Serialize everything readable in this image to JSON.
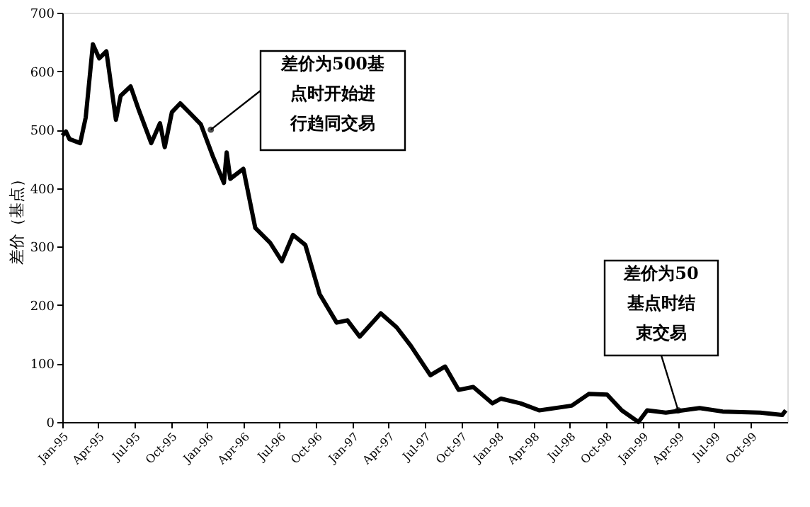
{
  "chart_data": {
    "type": "line",
    "ylabel": "差价（基点）",
    "x": [
      "1995-01-01",
      "1995-01-10",
      "1995-01-19",
      "1995-02-15",
      "1995-03-01",
      "1995-03-19",
      "1995-04-04",
      "1995-04-22",
      "1995-05-16",
      "1995-05-28",
      "1995-06-22",
      "1995-07-13",
      "1995-08-13",
      "1995-09-04",
      "1995-09-16",
      "1995-10-04",
      "1995-10-25",
      "1995-11-16",
      "1995-12-16",
      "1996-01-16",
      "1996-02-12",
      "1996-02-19",
      "1996-02-28",
      "1996-04-01",
      "1996-05-01",
      "1996-06-07",
      "1996-07-07",
      "1996-08-04",
      "1996-09-04",
      "1996-10-10",
      "1996-11-22",
      "1996-12-19",
      "1997-01-19",
      "1997-03-13",
      "1997-04-22",
      "1997-05-28",
      "1997-07-16",
      "1997-08-22",
      "1997-09-25",
      "1997-11-01",
      "1997-12-19",
      "1998-01-10",
      "1998-02-28",
      "1998-04-16",
      "1998-07-07",
      "1998-08-19",
      "1998-10-04",
      "1998-11-10",
      "1998-12-22",
      "1999-01-13",
      "1999-03-01",
      "1999-05-25",
      "1999-07-22",
      "1999-10-25",
      "1999-12-19",
      "1999-12-28"
    ],
    "series": [
      {
        "color": "#000000",
        "values": [
          490,
          497,
          484,
          477,
          521,
          646,
          622,
          634,
          517,
          558,
          574,
          533,
          477,
          511,
          470,
          530,
          545,
          530,
          509,
          453,
          409,
          461,
          416,
          433,
          332,
          307,
          275,
          320,
          303,
          219,
          170,
          174,
          146,
          186,
          162,
          130,
          80,
          95,
          55,
          60,
          32,
          40,
          32,
          20,
          28,
          48,
          47,
          20,
          0,
          20,
          16,
          24,
          18,
          16,
          12,
          20
        ]
      }
    ],
    "xlim": [
      "1995-01-01",
      "2000-01-01"
    ],
    "xticks": [
      {
        "value": "1995-01-01",
        "label": "Jan-95"
      },
      {
        "value": "1995-04-01",
        "label": "Apr-95"
      },
      {
        "value": "1995-07-01",
        "label": "Jul-95"
      },
      {
        "value": "1995-10-01",
        "label": "Oct-95"
      },
      {
        "value": "1996-01-01",
        "label": "Jan-96"
      },
      {
        "value": "1996-04-01",
        "label": "Apr-96"
      },
      {
        "value": "1996-07-01",
        "label": "Jul-96"
      },
      {
        "value": "1996-10-01",
        "label": "Oct-96"
      },
      {
        "value": "1997-01-01",
        "label": "Jan-97"
      },
      {
        "value": "1997-04-01",
        "label": "Apr-97"
      },
      {
        "value": "1997-07-01",
        "label": "Jul-97"
      },
      {
        "value": "1997-10-01",
        "label": "Oct-97"
      },
      {
        "value": "1998-01-01",
        "label": "Jan-98"
      },
      {
        "value": "1998-04-01",
        "label": "Apr-98"
      },
      {
        "value": "1998-07-01",
        "label": "Jul-98"
      },
      {
        "value": "1998-10-01",
        "label": "Oct-98"
      },
      {
        "value": "1999-01-01",
        "label": "Jan-99"
      },
      {
        "value": "1999-04-01",
        "label": "Apr-99"
      },
      {
        "value": "1999-07-01",
        "label": "Jul-99"
      },
      {
        "value": "1999-10-01",
        "label": "Oct-99"
      }
    ],
    "ylim": [
      0,
      700
    ],
    "yticks": [
      0,
      100,
      200,
      300,
      400,
      500,
      600,
      700
    ],
    "annotations": [
      {
        "text": "差价为500基点时开始进行趋同交易",
        "x": "1996-01-10",
        "y": 500
      },
      {
        "text": "差价为50基点时结束交易",
        "x": "1999-04-01",
        "y": 20
      }
    ]
  }
}
